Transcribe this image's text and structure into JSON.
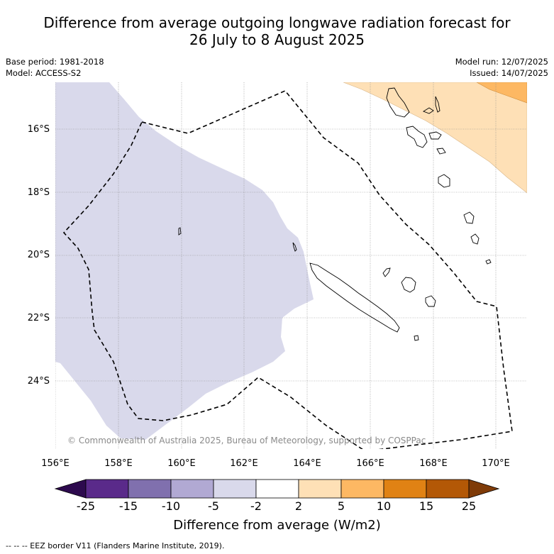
{
  "title": {
    "line1": "Difference from average outgoing longwave radiation forecast for",
    "line2": "26 July to 8 August 2025"
  },
  "meta": {
    "base_period": "Base period: 1981-2018",
    "model": "Model: ACCESS-S2",
    "model_run": "Model run: 12/07/2025",
    "issued": "Issued: 14/07/2025"
  },
  "latitude_labels": [
    "16°S",
    "18°S",
    "20°S",
    "22°S",
    "24°S"
  ],
  "longitude_labels": [
    "156°E",
    "158°E",
    "160°E",
    "162°E",
    "164°E",
    "166°E",
    "168°E",
    "170°E"
  ],
  "copyright": "© Commonwealth of Australia 2025, Bureau of Meteorology, supported by COSPPac",
  "colorbar": {
    "title": "Difference from average (W/m2)",
    "ticks": [
      "-25",
      "-15",
      "-10",
      "-5",
      "-2",
      "2",
      "5",
      "10",
      "15",
      "25"
    ],
    "colors": [
      "#2d0a4e",
      "#5a2a8a",
      "#8070ae",
      "#b1a9d3",
      "#d9d9eb",
      "#ffffff",
      "#fee0b6",
      "#fdb863",
      "#e08214",
      "#b35806",
      "#7f3b08"
    ]
  },
  "legend": {
    "eez_note": "--  --  -- EEZ border V11 (Flanders Marine Institute, 2019)."
  },
  "colors": {
    "negative_fill": "#d9d9eb",
    "light_orange_fill": "#fee0b6",
    "orange_fill": "#fdb863"
  }
}
